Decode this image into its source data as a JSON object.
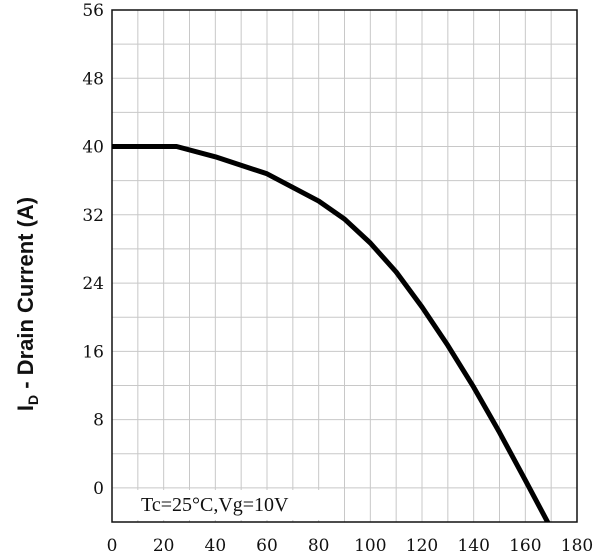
{
  "chart_data": {
    "type": "line",
    "title": "",
    "xlabel": "",
    "ylabel": {
      "main": "I",
      "subscript": "D",
      "rest": " - Drain Current (A)"
    },
    "annotation": "Tc=25°C,Vg=10V",
    "xlim": [
      0,
      180
    ],
    "ylim": [
      -4,
      56
    ],
    "x_ticks": [
      0,
      20,
      40,
      60,
      80,
      100,
      120,
      140,
      160,
      180
    ],
    "x_tick_labels": [
      "0",
      "20",
      "40",
      "60",
      "80",
      "100",
      "120",
      "140",
      "160",
      "180"
    ],
    "y_ticks": [
      0,
      8,
      16,
      24,
      32,
      40,
      48,
      56
    ],
    "y_tick_labels": [
      "0",
      "8",
      "16",
      "24",
      "32",
      "40",
      "48",
      "56"
    ],
    "grid": true,
    "grid_minor_step": {
      "x": 10,
      "y": 4
    },
    "series": [
      {
        "color": "#000000",
        "x": [
          0,
          25,
          40,
          60,
          80,
          90,
          100,
          110,
          120,
          130,
          140,
          150,
          160,
          170,
          175
        ],
        "y": [
          40,
          40,
          38.8,
          36.8,
          33.6,
          31.5,
          28.7,
          25.3,
          21.2,
          16.7,
          11.8,
          6.5,
          0.9,
          -4.8,
          -7.8
        ]
      }
    ]
  }
}
